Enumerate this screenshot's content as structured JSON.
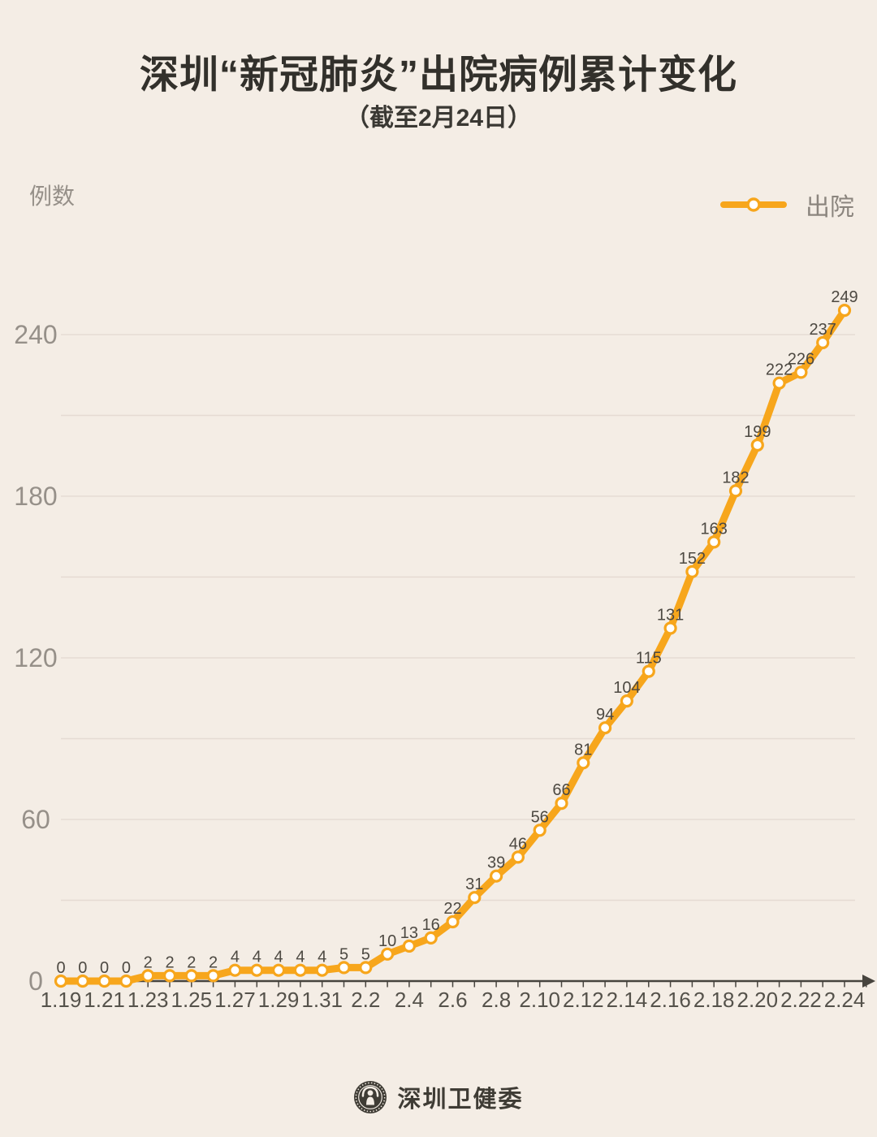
{
  "page": {
    "title": "深圳“新冠肺炎”出院病例累计变化",
    "subtitle": "（截至2月24日）"
  },
  "y_axis_unit": "例数",
  "legend": {
    "label": "出院"
  },
  "footer": {
    "org_name": "深圳卫健委",
    "logo": "shenzhen-health-commission-emblem"
  },
  "colors": {
    "background": "#F4EDE5",
    "line": "#F7A61C",
    "marker_fill": "#FFFFFF",
    "grid": "#E5DBD3",
    "axis": "#47443E",
    "title_text": "#32302B",
    "muted_text": "#969089",
    "x_label_text": "#55524B",
    "data_label_text": "#4D4942",
    "footer_text": "#3F3C35"
  },
  "chart_data": {
    "type": "line",
    "title": "深圳“新冠肺炎”出院病例累计变化",
    "subtitle": "（截至2月24日）",
    "xlabel": "",
    "ylabel": "例数",
    "x": [
      "1.19",
      "1.20",
      "1.21",
      "1.22",
      "1.23",
      "1.24",
      "1.25",
      "1.26",
      "1.27",
      "1.28",
      "1.29",
      "1.30",
      "1.31",
      "2.1",
      "2.2",
      "2.3",
      "2.4",
      "2.5",
      "2.6",
      "2.7",
      "2.8",
      "2.9",
      "2.10",
      "2.11",
      "2.12",
      "2.13",
      "2.14",
      "2.15",
      "2.16",
      "2.17",
      "2.18",
      "2.19",
      "2.20",
      "2.21",
      "2.22",
      "2.23",
      "2.24"
    ],
    "series": [
      {
        "name": "出院",
        "values": [
          0,
          0,
          0,
          0,
          2,
          2,
          2,
          2,
          4,
          4,
          4,
          4,
          4,
          5,
          5,
          10,
          13,
          16,
          22,
          31,
          39,
          46,
          56,
          66,
          81,
          94,
          104,
          115,
          131,
          152,
          163,
          182,
          199,
          222,
          226,
          237,
          249
        ]
      }
    ],
    "y_ticks": [
      0,
      60,
      120,
      180,
      240
    ],
    "ylim": [
      0,
      270
    ],
    "grid_step": 30,
    "grid": "horizontal",
    "x_label_step": 2,
    "point_labels": true,
    "legend_position": "top-right"
  }
}
